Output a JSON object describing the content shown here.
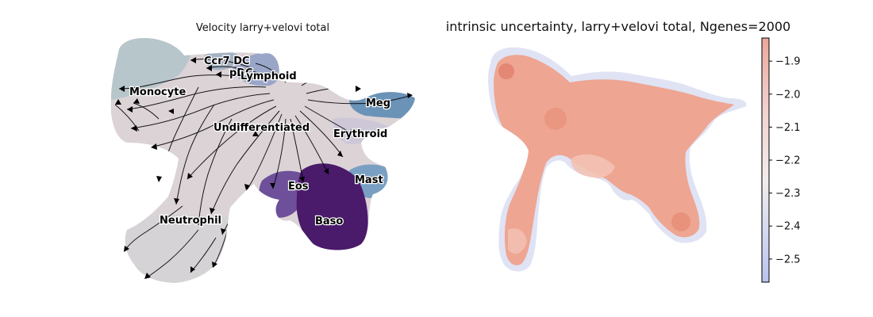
{
  "figure": {
    "left_panel": {
      "title": "Velocity larry+velovi total",
      "clusters": [
        {
          "name": "Monocyte",
          "color": "#b7c6cb"
        },
        {
          "name": "Ccr7 DC",
          "color": "#9fb0c0"
        },
        {
          "name": "pDC",
          "color": "#9fb0c0"
        },
        {
          "name": "Lymphoid",
          "color": "#8e9cc6"
        },
        {
          "name": "Meg",
          "color": "#6b93b8"
        },
        {
          "name": "Undifferentiated",
          "color": "#dcd3d6"
        },
        {
          "name": "Erythroid",
          "color": "#c3c0d2"
        },
        {
          "name": "Mast",
          "color": "#79a0c2"
        },
        {
          "name": "Eos",
          "color": "#6e4f99"
        },
        {
          "name": "Baso",
          "color": "#4a1a6b"
        },
        {
          "name": "Neutrophil",
          "color": "#d6d3d6"
        }
      ]
    },
    "right_panel": {
      "title": "intrinsic uncertainty, larry+velovi total, Ngenes=2000"
    }
  },
  "chart_data": [
    {
      "type": "scatter",
      "title": "Velocity larry+velovi total",
      "xlabel": "",
      "ylabel": "",
      "axes_visible": false,
      "overlay": "velocity streamlines (black arrows)",
      "labels": [
        "Monocyte",
        "Ccr7 DC",
        "pDC",
        "Lymphoid",
        "Meg",
        "Undifferentiated",
        "Erythroid",
        "Mast",
        "Eos",
        "Baso",
        "Neutrophil"
      ]
    },
    {
      "type": "scatter",
      "title": "intrinsic uncertainty, larry+velovi total, Ngenes=2000",
      "xlabel": "",
      "ylabel": "",
      "axes_visible": false,
      "colorbar": {
        "cmap": "coolwarm",
        "range": [
          -2.57,
          -1.83
        ],
        "ticks": [
          -1.9,
          -2.0,
          -2.1,
          -2.2,
          -2.3,
          -2.4,
          -2.5
        ],
        "tick_labels": [
          "−1.9",
          "−2.0",
          "−2.1",
          "−2.2",
          "−2.3",
          "−2.4",
          "−2.5"
        ],
        "color_low": "#b9c3ee",
        "color_mid": "#f4ecec",
        "color_high": "#eba79c"
      },
      "dominant_point_color": "#ec9a83"
    }
  ]
}
